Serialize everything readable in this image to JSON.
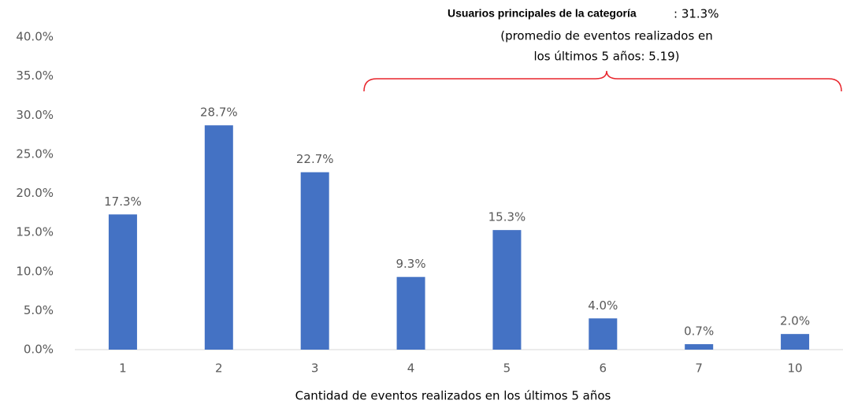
{
  "chart_data": {
    "type": "bar",
    "x_label": "Cantidad de eventos realizados en los últimos 5 años",
    "annotation": {
      "title": "Usuarios principales de la categoría",
      "share": ": 31.3%",
      "line1": "(promedio de eventos realizados en",
      "line2": "los últimos 5 años: 5.19)"
    },
    "categories": [
      "1",
      "2",
      "3",
      "4",
      "5",
      "6",
      "7",
      "10"
    ],
    "values": [
      17.3,
      28.7,
      22.7,
      9.3,
      15.3,
      4.0,
      0.7,
      2.0
    ],
    "value_labels": [
      "17.3%",
      "28.7%",
      "22.7%",
      "9.3%",
      "15.3%",
      "4.0%",
      "0.7%",
      "2.0%"
    ],
    "color": "#4472c4",
    "ylim": [
      0,
      40
    ],
    "yticks": [
      {
        "value": 0,
        "label": "0.0%"
      },
      {
        "value": 5,
        "label": "5.0%"
      },
      {
        "value": 10,
        "label": "10.0%"
      },
      {
        "value": 15,
        "label": "15.0%"
      },
      {
        "value": 20,
        "label": "20.0%"
      },
      {
        "value": 25,
        "label": "25.0%"
      },
      {
        "value": 30,
        "label": "30.0%"
      },
      {
        "value": 35,
        "label": "35.0%"
      },
      {
        "value": 40,
        "label": "40.0%"
      }
    ],
    "grid": false
  }
}
